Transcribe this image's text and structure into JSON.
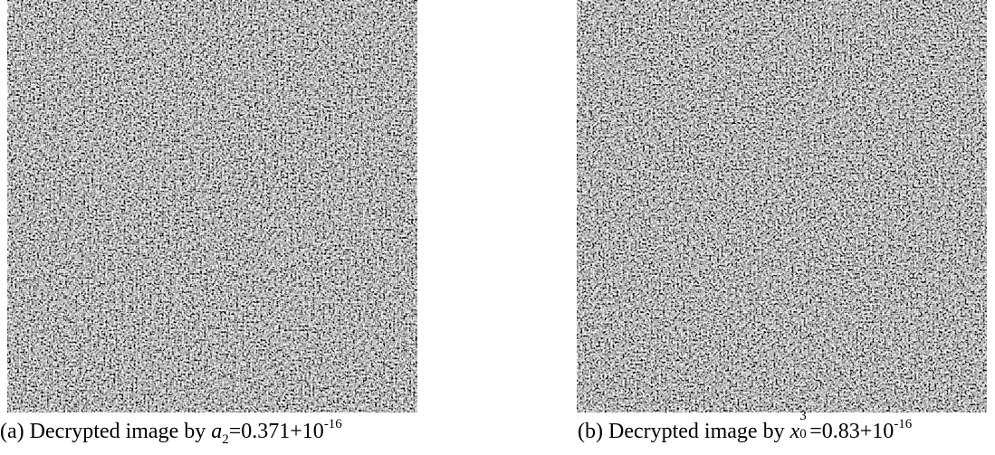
{
  "figures": [
    {
      "label": "(a)",
      "caption_text": "Decrypted image by",
      "variable": "a",
      "subscript": "2",
      "value": "=0.371+10",
      "exponent": "-16"
    },
    {
      "label": "(b)",
      "caption_text": "Decrypted image by",
      "variable": "x",
      "subscript": "0",
      "superscript": "3",
      "value": "=0.83+10",
      "exponent": "-16"
    }
  ]
}
